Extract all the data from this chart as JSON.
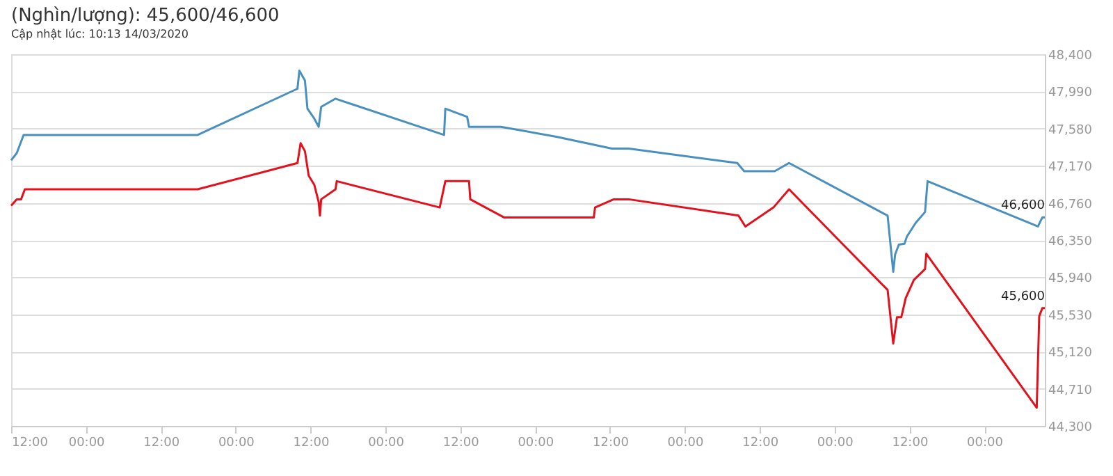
{
  "chart_data": {
    "type": "line",
    "title": "(Nghìn/lượng): 45,600/46,600",
    "subtitle": "Cập nhật lúc: 10:13 14/03/2020",
    "series": [
      {
        "color": "#4a90bf",
        "x": [
          "2020-03-07T12:00",
          "2020-03-07T12:54",
          "2020-03-07T14:00",
          "2020-03-08T17:54",
          "2020-03-09T09:54",
          "2020-03-09T10:12",
          "2020-03-09T11:06",
          "2020-03-09T11:30",
          "2020-03-09T12:36",
          "2020-03-09T13:18",
          "2020-03-09T13:42",
          "2020-03-09T16:00",
          "2020-03-10T09:24",
          "2020-03-10T09:36",
          "2020-03-10T13:06",
          "2020-03-10T13:24",
          "2020-03-10T18:30",
          "2020-03-11T03:24",
          "2020-03-11T12:18",
          "2020-03-11T15:00",
          "2020-03-12T08:24",
          "2020-03-12T09:30",
          "2020-03-12T14:24",
          "2020-03-12T16:42",
          "2020-03-13T08:30",
          "2020-03-13T09:24",
          "2020-03-13T09:42",
          "2020-03-13T10:18",
          "2020-03-13T11:12",
          "2020-03-13T11:36",
          "2020-03-13T13:00",
          "2020-03-13T14:30",
          "2020-03-13T14:54",
          "2020-03-14T08:36",
          "2020-03-14T09:18",
          "2020-03-14T09:42"
        ],
        "values": [
          47230,
          47310,
          47510,
          47510,
          48020,
          48220,
          48110,
          47800,
          47690,
          47600,
          47820,
          47910,
          47510,
          47800,
          47710,
          47600,
          47600,
          47490,
          47360,
          47360,
          47200,
          47110,
          47110,
          47200,
          46620,
          46000,
          46190,
          46300,
          46310,
          46390,
          46540,
          46660,
          47000,
          46500,
          46600,
          46600
        ]
      },
      {
        "color": "#e3111b",
        "x": [
          "2020-03-07T12:00",
          "2020-03-07T12:54",
          "2020-03-07T13:36",
          "2020-03-07T14:12",
          "2020-03-08T17:54",
          "2020-03-09T09:54",
          "2020-03-09T10:24",
          "2020-03-09T11:06",
          "2020-03-09T11:42",
          "2020-03-09T12:36",
          "2020-03-09T13:18",
          "2020-03-09T13:30",
          "2020-03-09T13:42",
          "2020-03-09T16:00",
          "2020-03-09T16:12",
          "2020-03-10T08:42",
          "2020-03-10T09:36",
          "2020-03-10T13:24",
          "2020-03-10T13:36",
          "2020-03-10T19:00",
          "2020-03-11T09:24",
          "2020-03-11T09:36",
          "2020-03-11T12:36",
          "2020-03-11T15:00",
          "2020-03-12T08:36",
          "2020-03-12T09:42",
          "2020-03-12T14:12",
          "2020-03-12T16:42",
          "2020-03-13T08:30",
          "2020-03-13T09:24",
          "2020-03-13T10:00",
          "2020-03-13T10:42",
          "2020-03-13T11:24",
          "2020-03-13T12:42",
          "2020-03-13T14:30",
          "2020-03-13T14:42",
          "2020-03-14T08:24",
          "2020-03-14T08:48",
          "2020-03-14T09:18",
          "2020-03-14T09:42"
        ],
        "values": [
          46730,
          46800,
          46800,
          46910,
          46910,
          47200,
          47420,
          47330,
          47060,
          46960,
          46770,
          46620,
          46800,
          46910,
          47000,
          46710,
          47000,
          47000,
          46800,
          46600,
          46600,
          46710,
          46800,
          46800,
          46620,
          46500,
          46710,
          46910,
          45800,
          45210,
          45500,
          45500,
          45710,
          45910,
          46030,
          46200,
          44500,
          45510,
          45600,
          45600
        ]
      }
    ],
    "annotations": [
      {
        "text": "46,600",
        "x": "2020-03-14T09:42",
        "y": 46600
      },
      {
        "text": "45,600",
        "x": "2020-03-14T09:42",
        "y": 45600
      }
    ],
    "xlim": [
      "2020-03-07T12:00",
      "2020-03-14T09:42"
    ],
    "xticks": [
      {
        "value": "2020-03-07T12:00",
        "label": "12:00"
      },
      {
        "value": "2020-03-08T00:00",
        "label": "00:00"
      },
      {
        "value": "2020-03-08T12:00",
        "label": "12:00"
      },
      {
        "value": "2020-03-09T00:00",
        "label": "00:00"
      },
      {
        "value": "2020-03-09T12:00",
        "label": "12:00"
      },
      {
        "value": "2020-03-10T00:00",
        "label": "00:00"
      },
      {
        "value": "2020-03-10T12:00",
        "label": "12:00"
      },
      {
        "value": "2020-03-11T00:00",
        "label": "00:00"
      },
      {
        "value": "2020-03-11T12:00",
        "label": "12:00"
      },
      {
        "value": "2020-03-12T00:00",
        "label": "00:00"
      },
      {
        "value": "2020-03-12T12:00",
        "label": "12:00"
      },
      {
        "value": "2020-03-13T00:00",
        "label": "00:00"
      },
      {
        "value": "2020-03-13T12:00",
        "label": "12:00"
      },
      {
        "value": "2020-03-14T00:00",
        "label": "00:00"
      }
    ],
    "ylim": [
      44300,
      48400
    ],
    "yticks": [
      {
        "value": 44300,
        "label": "44,300"
      },
      {
        "value": 44710,
        "label": "44,710"
      },
      {
        "value": 45120,
        "label": "45,120"
      },
      {
        "value": 45530,
        "label": "45,530"
      },
      {
        "value": 45940,
        "label": "45,940"
      },
      {
        "value": 46350,
        "label": "46,350"
      },
      {
        "value": 46760,
        "label": "46,760"
      },
      {
        "value": 47170,
        "label": "47,170"
      },
      {
        "value": 47580,
        "label": "47,580"
      },
      {
        "value": 47990,
        "label": "47,990"
      },
      {
        "value": 48400,
        "label": "48,400"
      }
    ],
    "grid": "y",
    "legend": false,
    "marker": "none",
    "line_style": "solid"
  }
}
